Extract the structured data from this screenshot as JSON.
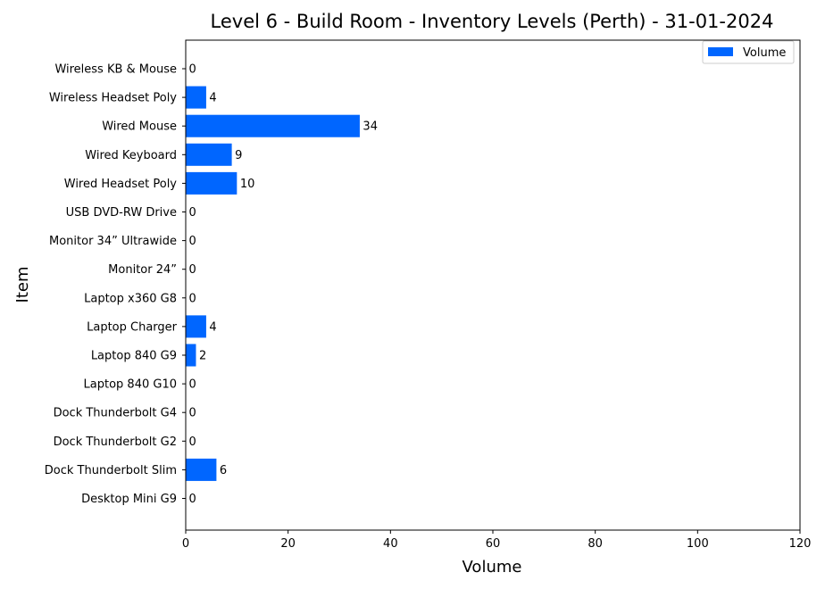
{
  "chart_data": {
    "type": "bar",
    "orientation": "horizontal",
    "title": "Level 6 - Build Room - Inventory Levels (Perth) - 31-01-2024",
    "xlabel": "Volume",
    "ylabel": "Item",
    "xlim": [
      0,
      120
    ],
    "xticks": [
      0,
      20,
      40,
      60,
      80,
      100,
      120
    ],
    "grid": false,
    "legend": {
      "placement": "top-right",
      "entries": [
        "Volume"
      ]
    },
    "bar_color": "#0066ff",
    "categories": [
      "Desktop Mini G9",
      "Dock Thunderbolt Slim",
      "Dock Thunderbolt G2",
      "Dock Thunderbolt G4",
      "Laptop 840 G10",
      "Laptop 840 G9",
      "Laptop Charger ",
      "Laptop x360 G8",
      "Monitor 24” ",
      "Monitor 34” Ultrawide",
      "USB DVD-RW Drive",
      "Wired Headset Poly",
      "Wired Keyboard",
      "Wired Mouse",
      "Wireless Headset Poly ",
      "Wireless KB & Mouse"
    ],
    "series": [
      {
        "name": "Volume",
        "values": [
          0,
          6,
          0,
          0,
          0,
          2,
          4,
          0,
          0,
          0,
          0,
          10,
          9,
          34,
          4,
          0
        ]
      }
    ]
  }
}
